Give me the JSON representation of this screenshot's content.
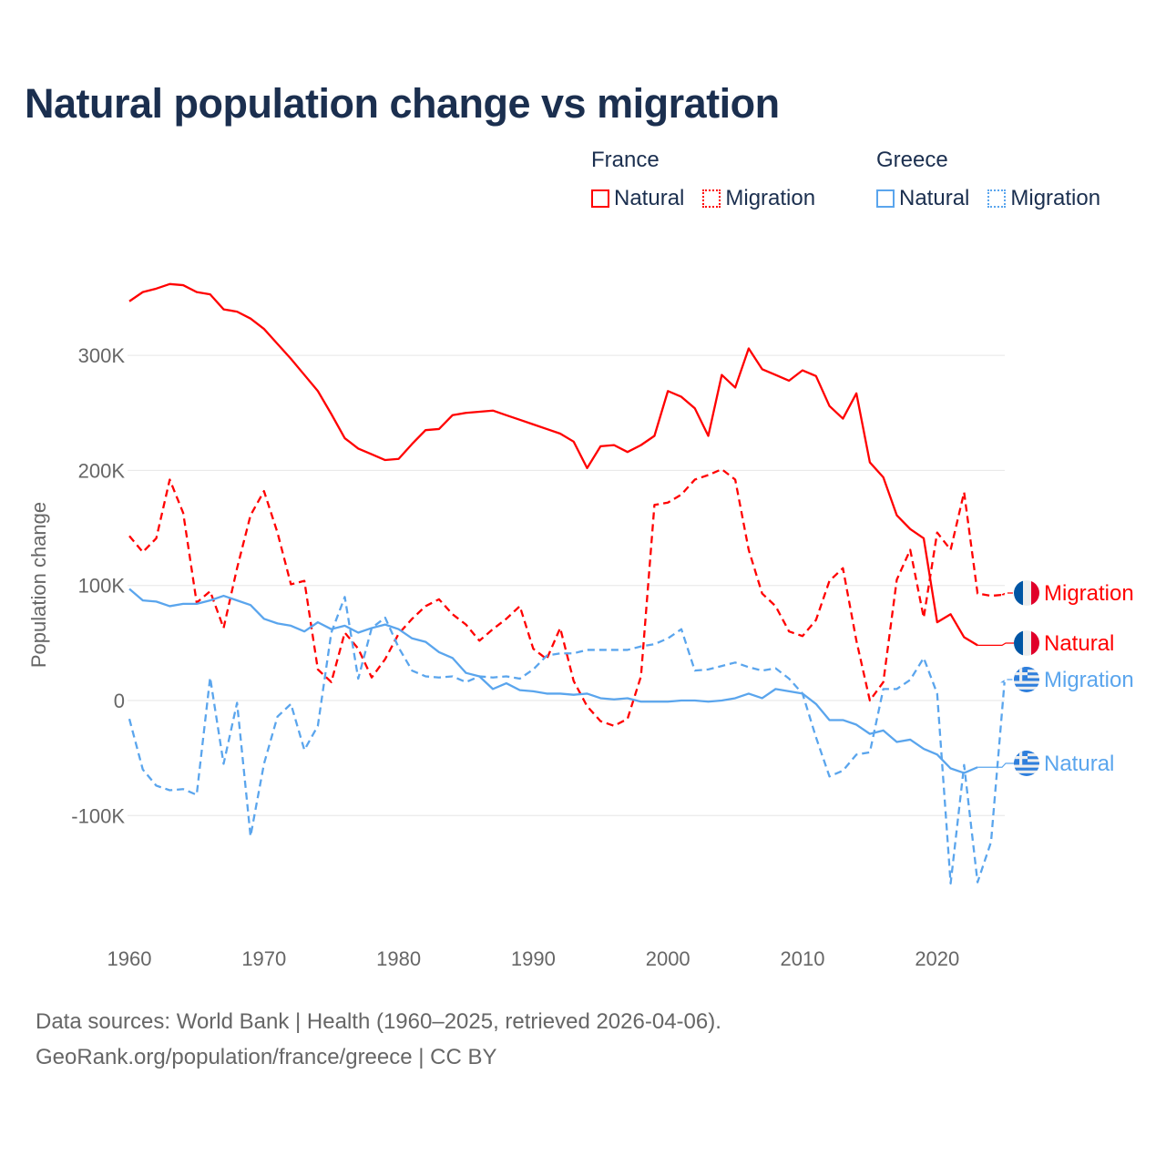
{
  "chart_data": {
    "type": "line",
    "title": "Natural population change vs migration",
    "xlabel": "",
    "ylabel": "Population change",
    "xlim": [
      1960,
      2025
    ],
    "ylim": [
      -190000,
      380000
    ],
    "x_ticks": [
      1960,
      1970,
      1980,
      1990,
      2000,
      2010,
      2020
    ],
    "x_tick_labels": [
      "1960",
      "1970",
      "1980",
      "1990",
      "2000",
      "2010",
      "2020"
    ],
    "y_ticks": [
      -100000,
      0,
      100000,
      200000,
      300000
    ],
    "y_tick_labels": [
      "-100K",
      "0",
      "100K",
      "200K",
      "300K"
    ],
    "grid": true,
    "legend": {
      "placement": "top-right",
      "groups": [
        {
          "name": "France",
          "items": [
            "Natural",
            "Migration"
          ]
        },
        {
          "name": "Greece",
          "items": [
            "Natural",
            "Migration"
          ]
        }
      ]
    },
    "series": [
      {
        "name": "France Natural",
        "country": "France",
        "label": "Natural",
        "color": "#ff0000",
        "dash": "solid",
        "start_year": 1960,
        "values": [
          347000,
          355000,
          358000,
          362000,
          361000,
          355000,
          353000,
          340000,
          338000,
          332000,
          323000,
          310000,
          297000,
          283000,
          269000,
          249000,
          228000,
          219000,
          214000,
          209000,
          210000,
          223000,
          235000,
          236000,
          248000,
          250000,
          251000,
          252000,
          248000,
          244000,
          240000,
          236000,
          232000,
          225000,
          202000,
          221000,
          222000,
          216000,
          222000,
          230000,
          269000,
          264000,
          254000,
          230000,
          283000,
          272000,
          306000,
          288000,
          283000,
          278000,
          287000,
          282000,
          256000,
          245000,
          267000,
          207000,
          194000,
          161000,
          149000,
          141000,
          68000,
          75000,
          55000,
          48000
        ]
      },
      {
        "name": "France Migration",
        "country": "France",
        "label": "Migration",
        "color": "#ff0000",
        "dash": "dashed",
        "start_year": 1960,
        "values": [
          143000,
          129000,
          141000,
          192000,
          163000,
          85000,
          95000,
          63000,
          115000,
          161000,
          182000,
          146000,
          101000,
          104000,
          27000,
          16000,
          59000,
          45000,
          20000,
          36000,
          58000,
          71000,
          82000,
          88000,
          75000,
          66000,
          52000,
          62000,
          71000,
          82000,
          45000,
          36000,
          63000,
          17000,
          -5000,
          -18000,
          -22000,
          -16000,
          21000,
          170000,
          172000,
          179000,
          192000,
          196000,
          201000,
          192000,
          131000,
          93000,
          82000,
          60000,
          56000,
          70000,
          104000,
          115000,
          52000,
          0,
          16000,
          105000,
          131000,
          72000,
          146000,
          131000,
          181000,
          93000,
          91000,
          92000
        ]
      },
      {
        "name": "Greece Natural",
        "country": "Greece",
        "label": "Natural",
        "color": "#5aa5ed",
        "dash": "solid",
        "start_year": 1960,
        "values": [
          97000,
          87000,
          86000,
          82000,
          84000,
          84000,
          87000,
          91000,
          87000,
          83000,
          71000,
          67000,
          65000,
          60000,
          68000,
          62000,
          65000,
          59000,
          63000,
          66000,
          62000,
          54000,
          51000,
          42000,
          37000,
          24000,
          21000,
          10000,
          15000,
          9000,
          8000,
          6000,
          6000,
          5000,
          6000,
          2000,
          1000,
          2000,
          -1000,
          -1000,
          -1000,
          0,
          0,
          -1000,
          0,
          2000,
          6000,
          2000,
          10000,
          8000,
          6000,
          -3000,
          -17000,
          -17000,
          -21000,
          -29000,
          -26000,
          -36000,
          -34000,
          -42000,
          -47000,
          -59000,
          -63000,
          -58000
        ]
      },
      {
        "name": "Greece Migration",
        "country": "Greece",
        "label": "Migration",
        "color": "#5aa5ed",
        "dash": "dashed",
        "start_year": 1960,
        "values": [
          -16000,
          -60000,
          -74000,
          -78000,
          -77000,
          -82000,
          20000,
          -55000,
          -2000,
          -118000,
          -55000,
          -14000,
          -3000,
          -43000,
          -22000,
          59000,
          90000,
          19000,
          63000,
          72000,
          46000,
          26000,
          21000,
          20000,
          21000,
          16000,
          21000,
          20000,
          21000,
          19000,
          27000,
          39000,
          41000,
          41000,
          44000,
          44000,
          44000,
          44000,
          47000,
          49000,
          54000,
          62000,
          26000,
          27000,
          30000,
          33000,
          29000,
          26000,
          28000,
          19000,
          6000,
          -32000,
          -66000,
          -61000,
          -47000,
          -45000,
          10000,
          10000,
          18000,
          37000,
          6000,
          -159000,
          -56000,
          -158000,
          -123000,
          16000
        ]
      }
    ]
  },
  "footer": {
    "line1": "Data sources: World Bank | Health (1960–2025, retrieved 2026-04-06).",
    "line2": "GeoRank.org/population/france/greece | CC BY"
  },
  "colors": {
    "france": "#ff0000",
    "greece": "#5aa5ed",
    "title": "#1b2f4f",
    "grid": "#e6e6e6",
    "axis_text": "#666666"
  }
}
